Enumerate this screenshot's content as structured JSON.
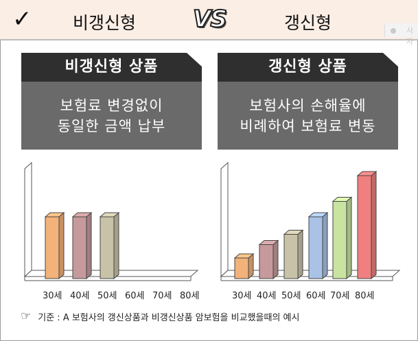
{
  "header": {
    "check_glyph": "✓",
    "left_label": "비갱신형",
    "vs_label": "VS",
    "right_label": "갱신형",
    "faint_text": "사자"
  },
  "panels": [
    {
      "title": "비갱신형 상품",
      "desc_line1": "보험료 변경없이",
      "desc_line2": "동일한 금액 납부"
    },
    {
      "title": "갱신형 상품",
      "desc_line1": "보험사의 손해율에",
      "desc_line2": "비례하여 보험료 변동"
    }
  ],
  "chart_data": [
    {
      "type": "bar",
      "categories": [
        "30세",
        "40세",
        "50세",
        "60세",
        "70세",
        "80세"
      ],
      "values": [
        6,
        6,
        6,
        0,
        0,
        0
      ],
      "colors": [
        "#f2b27a",
        "#c69a9c",
        "#c8c3a8"
      ]
    },
    {
      "type": "bar",
      "categories": [
        "30세",
        "40세",
        "50세",
        "60세",
        "70세",
        "80세"
      ],
      "values": [
        2,
        3.3,
        4.3,
        6,
        7.5,
        10
      ],
      "colors": [
        "#f2b27a",
        "#c69a9c",
        "#c8c3a8",
        "#a9c2e6",
        "#c9e3a0",
        "#f07f7f"
      ]
    }
  ],
  "footnote": {
    "icon": "pointing-hand-icon",
    "text": "기준 : A 보험사의 갱신상품과 비갱신상품 암보험을 비교했을때의 예시"
  }
}
